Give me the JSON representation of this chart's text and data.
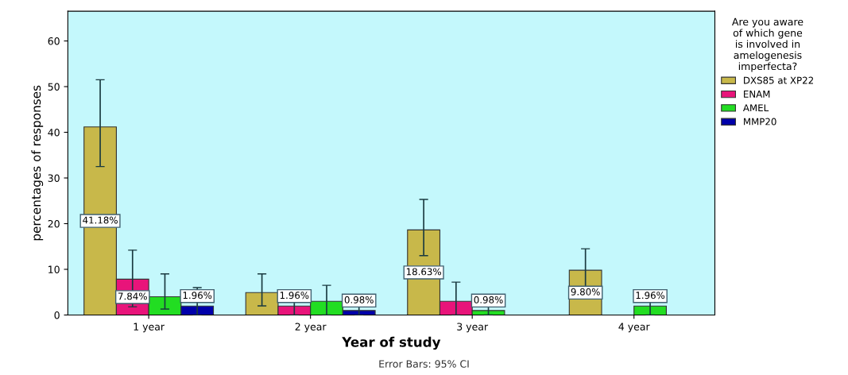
{
  "chart_data": {
    "type": "bar",
    "xlabel": "Year of study",
    "ylabel": "percentages of responses",
    "legend_title": "Are you aware\nof which gene\nis involved in\namelogenesis\nimperfecta?",
    "categories": [
      "1 year",
      "2 year",
      "3 year",
      "4 year"
    ],
    "series": [
      {
        "name": "DXS85 at XP22",
        "color": "#c8b84a",
        "values": [
          41.18,
          4.9,
          18.63,
          9.8
        ],
        "errors": [
          [
            32.5,
            51.5
          ],
          [
            2,
            9
          ],
          [
            13,
            25.3
          ],
          [
            5,
            14.5
          ]
        ],
        "value_labels": [
          "41.18%",
          null,
          "18.63%",
          "9.80%"
        ]
      },
      {
        "name": "ENAM",
        "color": "#e8147a",
        "values": [
          7.84,
          1.96,
          3,
          null
        ],
        "errors": [
          [
            1.8,
            14.2
          ],
          [
            0,
            5.5
          ],
          [
            0,
            7.2
          ],
          null
        ],
        "value_labels": [
          "7.84%",
          "1.96%",
          null,
          null
        ]
      },
      {
        "name": "AMEL",
        "color": "#22dd22",
        "values": [
          4,
          3,
          0.98,
          1.96
        ],
        "errors": [
          [
            1.3,
            9
          ],
          [
            0,
            6.5
          ],
          [
            0,
            4.3
          ],
          [
            0,
            5.5
          ]
        ],
        "value_labels": [
          null,
          null,
          "0.98%",
          "1.96%"
        ]
      },
      {
        "name": "MMP20",
        "color": "#0000aa",
        "values": [
          1.96,
          0.98,
          null,
          null
        ],
        "errors": [
          [
            0,
            6
          ],
          [
            0,
            4
          ],
          null,
          null
        ],
        "value_labels": [
          "1.96%",
          "0.98%",
          null,
          null
        ]
      }
    ],
    "ylim": [
      0,
      66.5
    ],
    "yticks": [
      0,
      10,
      20,
      30,
      40,
      50,
      60
    ],
    "grid": false,
    "legend": "top right",
    "annotations": [
      "Error Bars: 95% CI"
    ]
  }
}
